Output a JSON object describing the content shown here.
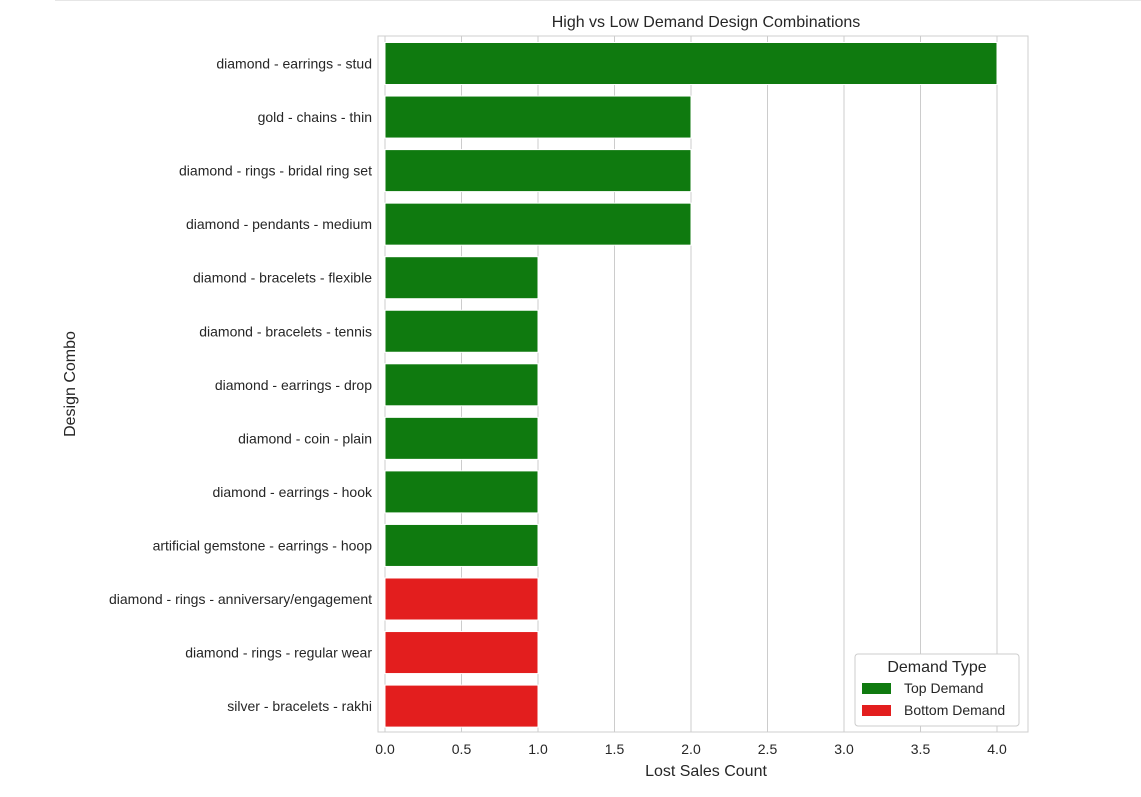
{
  "chart_data": {
    "type": "bar",
    "orientation": "horizontal",
    "title": "High vs Low Demand Design Combinations",
    "xlabel": "Lost Sales Count",
    "ylabel": "Design Combo",
    "xlim": [
      0,
      4.2
    ],
    "xticks": [
      0.0,
      0.5,
      1.0,
      1.5,
      2.0,
      2.5,
      3.0,
      3.5,
      4.0
    ],
    "xtick_labels": [
      "0.0",
      "0.5",
      "1.0",
      "1.5",
      "2.0",
      "2.5",
      "3.0",
      "3.5",
      "4.0"
    ],
    "grid": "vertical",
    "legend": {
      "title": "Demand Type",
      "placement": "bottom-right",
      "entries": [
        {
          "name": "Top Demand",
          "color": "#0f7a0f"
        },
        {
          "name": "Bottom Demand",
          "color": "#e31e1e"
        }
      ]
    },
    "categories": [
      "diamond - earrings - stud",
      "gold - chains - thin",
      "diamond - rings - bridal ring set",
      "diamond - pendants - medium",
      "diamond - bracelets - flexible",
      "diamond - bracelets - tennis",
      "diamond - earrings - drop",
      "diamond - coin - plain",
      "diamond - earrings - hook",
      "artificial gemstone - earrings - hoop",
      "diamond - rings - anniversary/engagement",
      "diamond - rings - regular wear",
      "silver - bracelets - rakhi"
    ],
    "values": [
      4,
      2,
      2,
      2,
      1,
      1,
      1,
      1,
      1,
      1,
      1,
      1,
      1
    ],
    "groups": [
      "Top Demand",
      "Top Demand",
      "Top Demand",
      "Top Demand",
      "Top Demand",
      "Top Demand",
      "Top Demand",
      "Top Demand",
      "Top Demand",
      "Top Demand",
      "Bottom Demand",
      "Bottom Demand",
      "Bottom Demand"
    ]
  }
}
